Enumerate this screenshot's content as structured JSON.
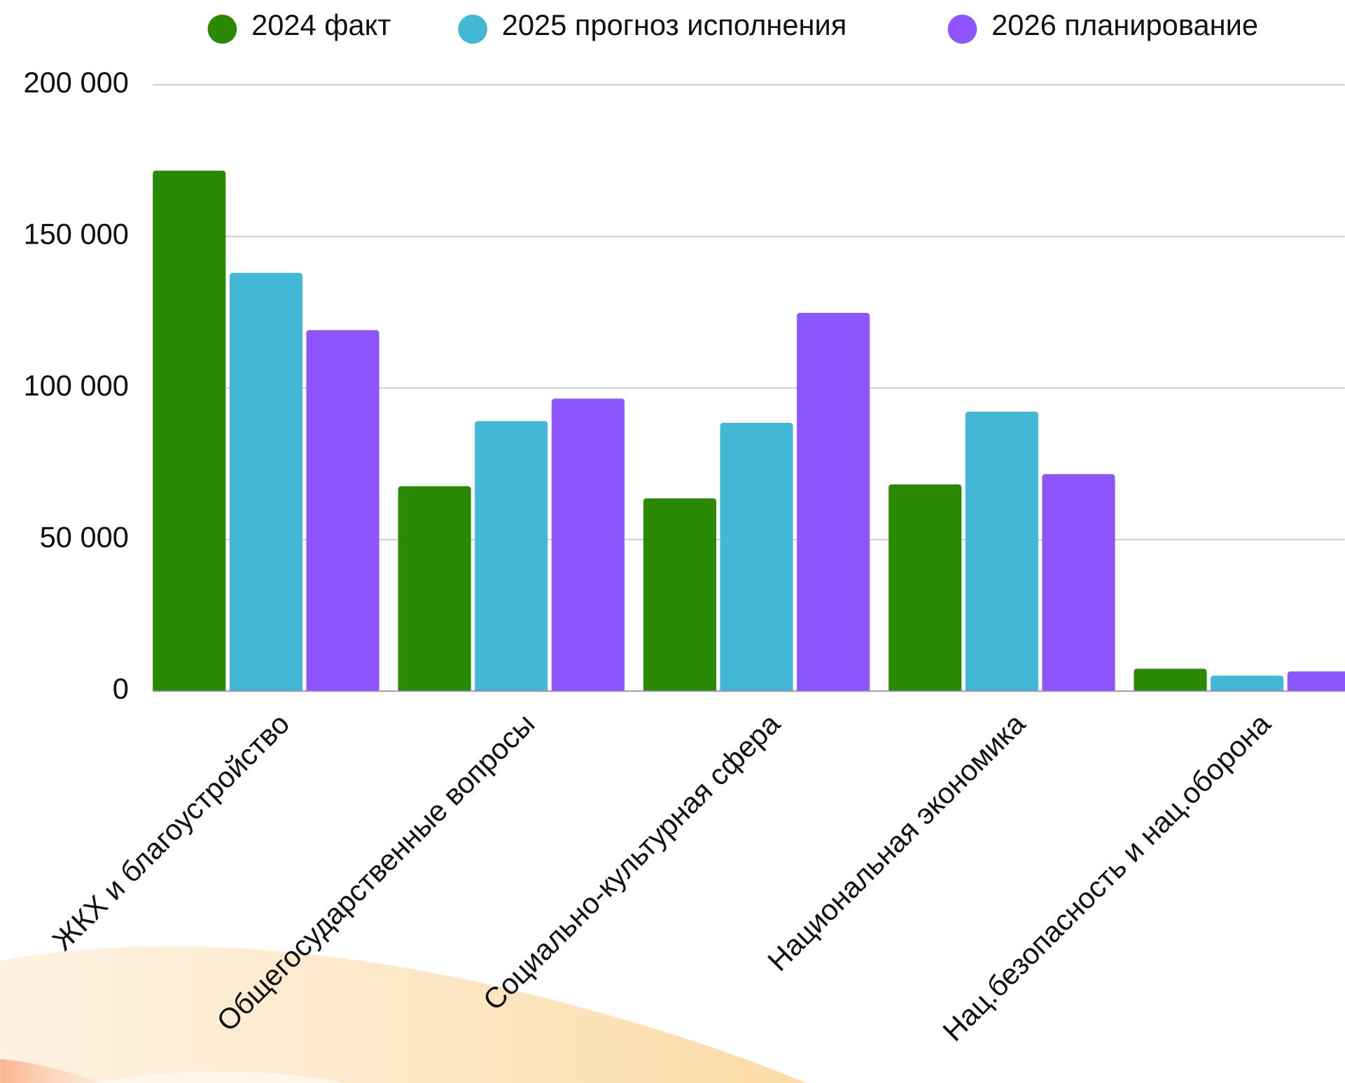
{
  "chart_data": {
    "type": "bar",
    "categories": [
      "ЖКХ и благоустройство",
      "Общегосударственные вопросы",
      "Социально-культурная сфера",
      "Национальная экономика",
      "Нац.безопасность и нац.оборона"
    ],
    "series": [
      {
        "name": "2024 факт",
        "color": "#2a8a06",
        "values": [
          171700,
          67600,
          63600,
          68200,
          7400
        ]
      },
      {
        "name": "2025 прогноз исполнения",
        "color": "#43b8d6",
        "values": [
          138000,
          89100,
          88500,
          92200,
          5100
        ]
      },
      {
        "name": "2026 планирование",
        "color": "#8c55fe",
        "values": [
          119100,
          96500,
          124800,
          71600,
          6500
        ]
      }
    ],
    "ylim": [
      0,
      200000
    ],
    "yticks": [
      0,
      {
        "value": 50000,
        "label": "50 000"
      },
      {
        "value": 100000,
        "label": "100 000"
      },
      {
        "value": 150000,
        "label": "150 000"
      },
      {
        "value": 200000,
        "label": "200 000"
      }
    ],
    "grid": true,
    "legend": "top"
  }
}
